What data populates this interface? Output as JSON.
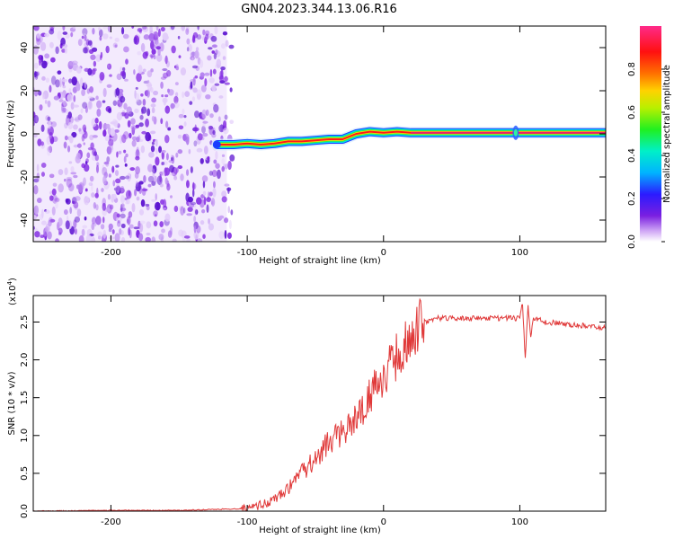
{
  "figure": {
    "title": "GN04.2023.344.13.06.R16"
  },
  "chart_data": [
    {
      "type": "heatmap",
      "xlabel": "Height of straight line (km)",
      "ylabel": "Frequency (Hz)",
      "xlim": [
        -257,
        163
      ],
      "ylim": [
        -50,
        50
      ],
      "xticks": [
        -200,
        -100,
        0,
        100
      ],
      "yticks": [
        -40,
        -20,
        0,
        20,
        40
      ],
      "colorbar": {
        "label": "Normalized spectral amplitude",
        "range": [
          0,
          1
        ],
        "ticks": [
          "0.0",
          "0.2",
          "0.4",
          "0.6",
          "0.8"
        ],
        "tick_values": [
          0,
          0.2,
          0.4,
          0.6,
          0.8
        ],
        "colormap": "rainbow (white-violet-blue-cyan-green-yellow-orange-red-magenta)"
      },
      "noise_region": {
        "x_range": [
          -257,
          -115
        ],
        "color": "#7a1fe0"
      },
      "frequency_track": {
        "x": [
          -122,
          -110,
          -100,
          -90,
          -80,
          -70,
          -60,
          -50,
          -40,
          -30,
          -20,
          -10,
          0,
          10,
          20,
          163
        ],
        "y": [
          -5,
          -5,
          -4.5,
          -5,
          -4.5,
          -3.5,
          -3.5,
          -3,
          -2.5,
          -2.5,
          0,
          1,
          0.5,
          1,
          0.5,
          0.5
        ]
      },
      "grid": false
    },
    {
      "type": "line",
      "xlabel": "Height of straight line (km)",
      "ylabel": "SNR (10 * v/v)",
      "multiplier_label": "(x10",
      "multiplier_exp": "4",
      "multiplier_close": ")",
      "xlim": [
        -257,
        163
      ],
      "ylim": [
        0,
        2.85
      ],
      "xticks": [
        -200,
        -100,
        0,
        100
      ],
      "yticks": [
        "0.0",
        "0.5",
        "1.0",
        "1.5",
        "2.0",
        "2.5"
      ],
      "ytick_values": [
        0,
        0.5,
        1.0,
        1.5,
        2.0,
        2.5
      ],
      "series": [
        {
          "color": "#e03a3a",
          "x": [
            -257,
            -200,
            -150,
            -110,
            -100,
            -90,
            -80,
            -70,
            -60,
            -50,
            -40,
            -30,
            -20,
            -10,
            0,
            10,
            20,
            30,
            40,
            50,
            60,
            70,
            80,
            90,
            100,
            102,
            104,
            106,
            108,
            110,
            120,
            130,
            140,
            150,
            163
          ],
          "y": [
            0.0,
            0.01,
            0.01,
            0.03,
            0.03,
            0.08,
            0.15,
            0.3,
            0.5,
            0.7,
            0.9,
            1.05,
            1.25,
            1.5,
            1.8,
            2.05,
            2.35,
            2.5,
            2.55,
            2.55,
            2.55,
            2.55,
            2.55,
            2.55,
            2.55,
            2.75,
            2.0,
            2.7,
            2.3,
            2.55,
            2.5,
            2.48,
            2.46,
            2.45,
            2.42
          ]
        }
      ],
      "grid": false
    }
  ]
}
